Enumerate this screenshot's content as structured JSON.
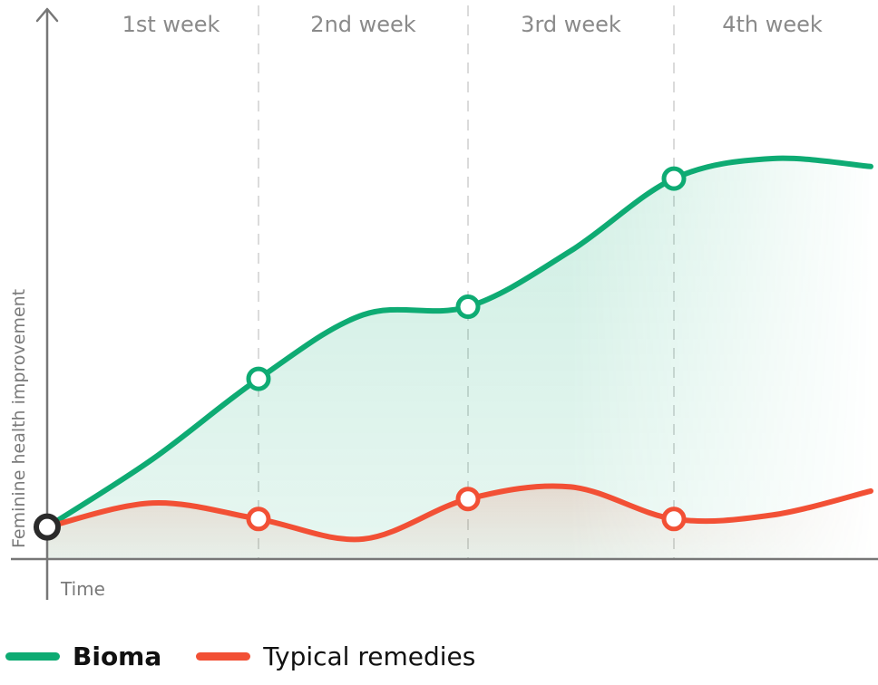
{
  "chart_data": {
    "type": "line",
    "categories": [
      "1st week",
      "2nd week",
      "3rd week",
      "4th week"
    ],
    "xlabel": "Time",
    "ylabel": "Feminine health improvement",
    "ylim": [
      0,
      100
    ],
    "grid": "vertical dashed week separators",
    "legend": "bottom-left",
    "series": [
      {
        "name": "Bioma",
        "color": "#0eab73",
        "x": [
          0,
          0.5,
          1,
          1.5,
          2,
          2.5,
          3,
          3.5,
          4
        ],
        "values": [
          8,
          25,
          45,
          61,
          63,
          77,
          95,
          100,
          98
        ],
        "marker_x": [
          1,
          2,
          3
        ],
        "origin_marker": false
      },
      {
        "name": "Typical remedies",
        "color": "#f25035",
        "x": [
          0,
          0.5,
          1,
          1.5,
          2,
          2.5,
          3,
          3.5,
          4
        ],
        "values": [
          8,
          14,
          10,
          5,
          15,
          18,
          10,
          11,
          17
        ],
        "marker_x": [
          1,
          2,
          3
        ],
        "origin_marker": true
      }
    ]
  }
}
